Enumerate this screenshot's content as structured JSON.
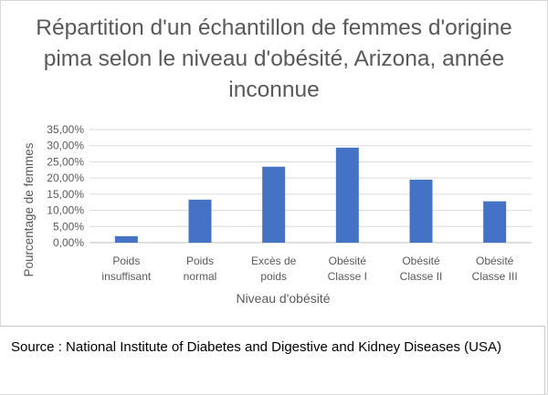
{
  "chart_data": {
    "type": "bar",
    "title": "Répartition d'un échantillon de femmes d'origine pima selon le niveau d'obésité, Arizona, année inconnue",
    "xlabel": "Niveau d'obésité",
    "ylabel": "Pourcentage de femmes",
    "categories": [
      [
        "Poids",
        "insuffisant"
      ],
      [
        "Poids",
        "normal"
      ],
      [
        "Excès de",
        "poids"
      ],
      [
        "Obésité",
        "Classe I"
      ],
      [
        "Obésité",
        "Classe II"
      ],
      [
        "Obésité",
        "Classe III"
      ]
    ],
    "values": [
      2.0,
      13.3,
      23.5,
      29.4,
      19.5,
      12.8
    ],
    "ylim": [
      0,
      35
    ],
    "yticks": [
      "0,00%",
      "5,00%",
      "10,00%",
      "15,00%",
      "20,00%",
      "25,00%",
      "30,00%",
      "35,00%"
    ],
    "grid": true,
    "bar_color": "#4472c4"
  },
  "source": "Source : National Institute of Diabetes and Digestive and Kidney Diseases (USA)"
}
